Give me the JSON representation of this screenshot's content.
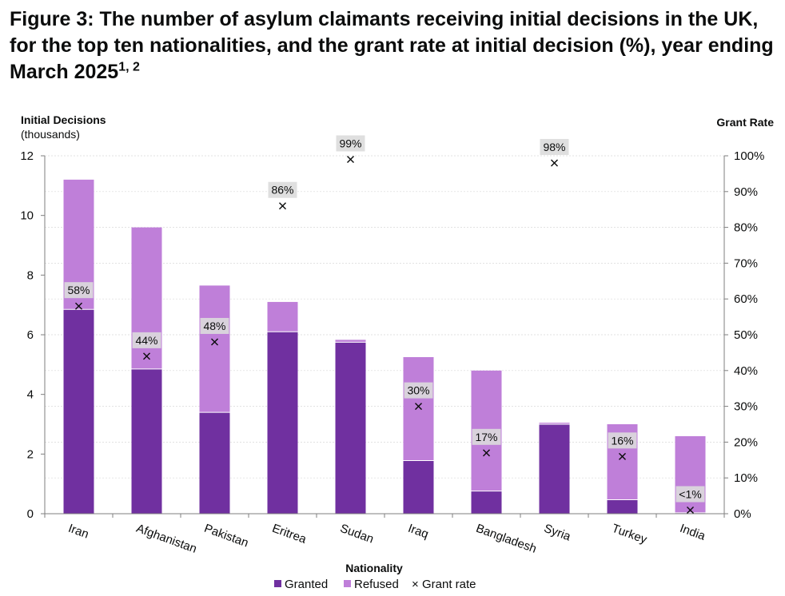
{
  "title": {
    "text": "Figure 3: The number of asylum claimants receiving initial decisions in the UK, for the top ten nationalities, and the grant rate at initial decision (%), year ending March 2025",
    "superscript": "1, 2"
  },
  "colors": {
    "granted": "#7030a0",
    "refused": "#bf7fd9",
    "label_box": "#dcdcdc",
    "grid": "#d9d9d9",
    "axis": "#7f7f7f"
  },
  "chart_data": {
    "type": "bar",
    "stacked": true,
    "secondary_axis": true,
    "categories": [
      "Iran",
      "Afghanistan",
      "Pakistan",
      "Eritrea",
      "Sudan",
      "Iraq",
      "Bangladesh",
      "Syria",
      "Turkey",
      "India"
    ],
    "series": [
      {
        "name": "Granted",
        "axis": "left",
        "values": [
          6.85,
          4.85,
          3.4,
          6.1,
          5.75,
          1.78,
          0.76,
          3.0,
          0.47,
          0.03
        ]
      },
      {
        "name": "Refused",
        "axis": "left",
        "values": [
          4.35,
          4.75,
          4.25,
          1.0,
          0.08,
          3.47,
          4.04,
          0.05,
          2.53,
          2.57
        ]
      },
      {
        "name": "Grant rate",
        "axis": "right",
        "marker": "x",
        "values": [
          58,
          44,
          48,
          86,
          99,
          30,
          17,
          98,
          16,
          1
        ]
      }
    ],
    "rate_labels": [
      "58%",
      "44%",
      "48%",
      "86%",
      "99%",
      "30%",
      "17%",
      "98%",
      "16%",
      "<1%"
    ],
    "ylabel_left": "Initial Decisions",
    "ylabel_left_units": "(thousands)",
    "ylabel_right": "Grant Rate",
    "xlabel": "Nationality",
    "ylim_left": [
      0,
      12
    ],
    "yticks_left": [
      "0",
      "2",
      "4",
      "6",
      "8",
      "10",
      "12"
    ],
    "ylim_right": [
      0,
      100
    ],
    "yticks_right": [
      "0%",
      "10%",
      "20%",
      "30%",
      "40%",
      "50%",
      "60%",
      "70%",
      "80%",
      "90%",
      "100%"
    ],
    "grid": true,
    "legend_position": "bottom"
  }
}
